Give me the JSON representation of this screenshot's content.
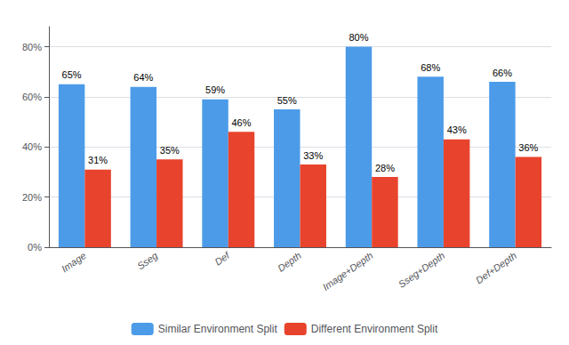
{
  "chart_data": {
    "type": "bar",
    "categories": [
      "Image",
      "Sseg",
      "Def",
      "Depth",
      "Image+Depth",
      "Sseg+Depth",
      "Def+Depth"
    ],
    "series": [
      {
        "name": "Similar Environment Split",
        "color": "#4C9BE8",
        "values": [
          65,
          64,
          59,
          55,
          80,
          68,
          66
        ],
        "value_labels": [
          "65%",
          "64%",
          "59%",
          "55%",
          "80%",
          "68%",
          "66%"
        ]
      },
      {
        "name": "Different Environment Split",
        "color": "#E8432D",
        "values": [
          31,
          35,
          46,
          33,
          28,
          43,
          36
        ],
        "value_labels": [
          "31%",
          "35%",
          "46%",
          "33%",
          "28%",
          "43%",
          "36%"
        ]
      }
    ],
    "ylim": [
      0,
      88
    ],
    "yticks": [
      {
        "value": 0,
        "label": "0%"
      },
      {
        "value": 20,
        "label": "20%"
      },
      {
        "value": 40,
        "label": "40%"
      },
      {
        "value": 60,
        "label": "60%"
      },
      {
        "value": 80,
        "label": "80%"
      }
    ],
    "grid": true,
    "legend": "bottom",
    "data_labels": true
  }
}
